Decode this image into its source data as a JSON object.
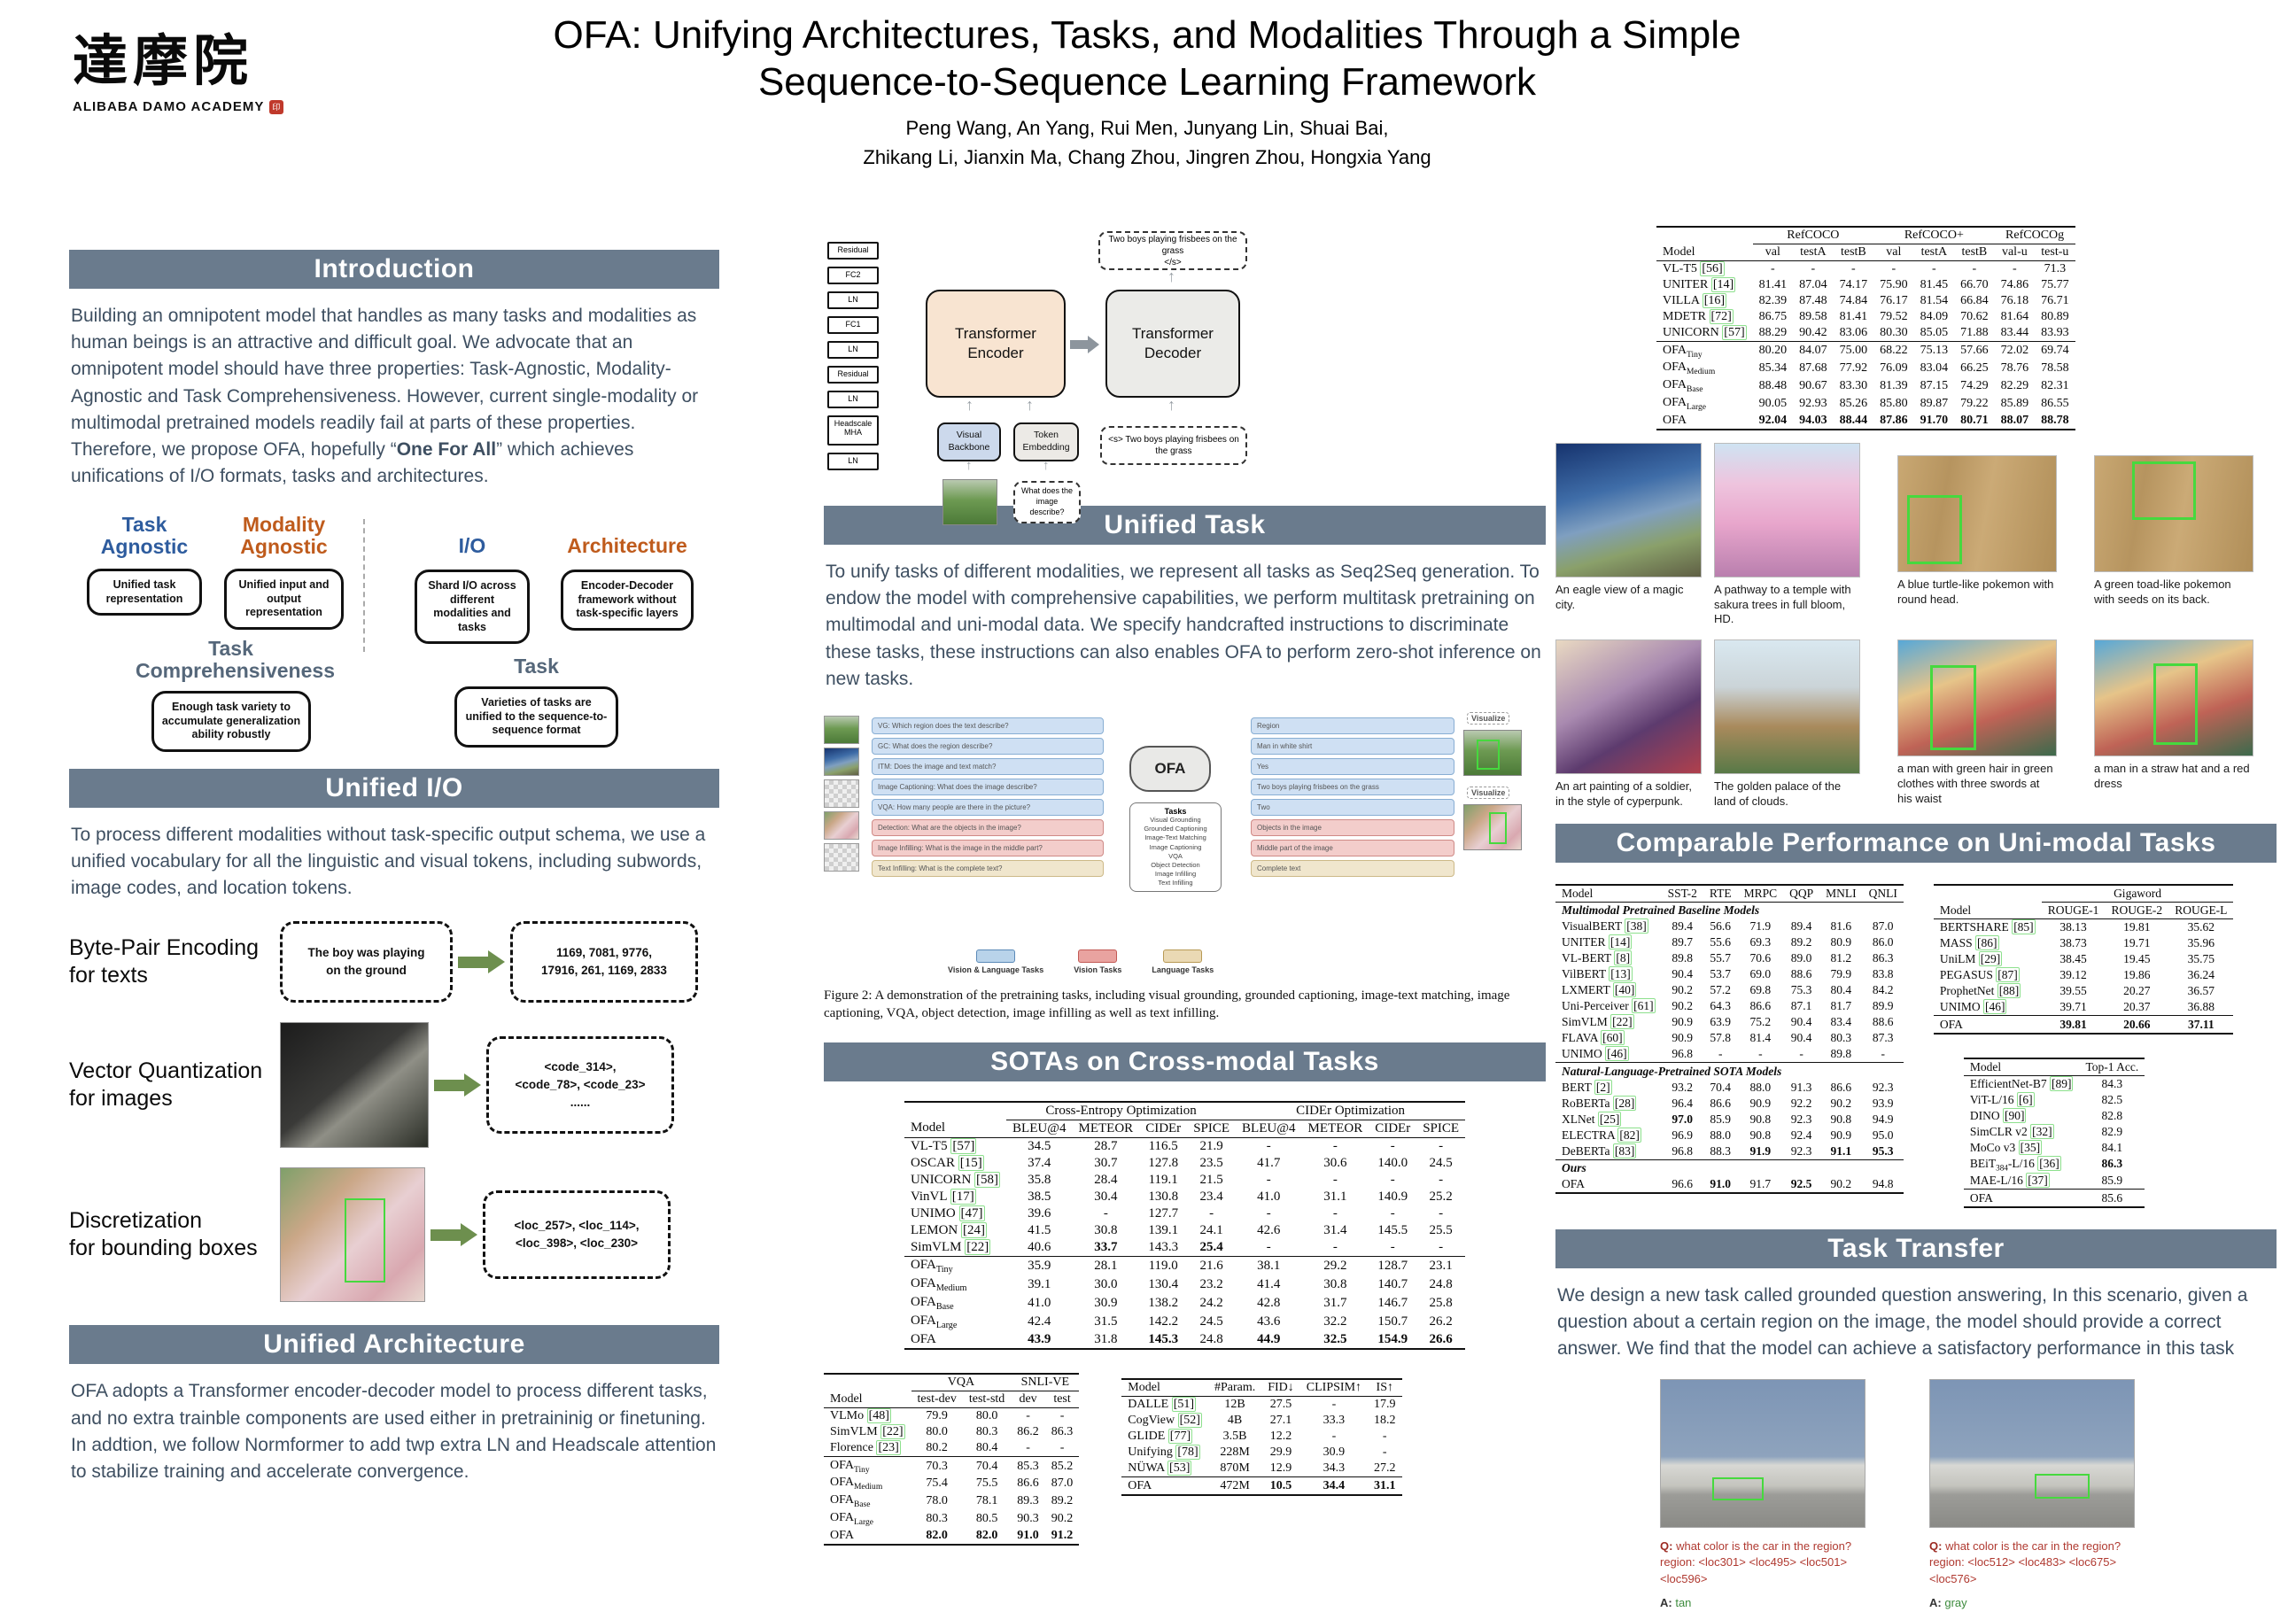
{
  "header": {
    "logo_cjk": "達摩院",
    "logo_sub": "ALIBABA DAMO ACADEMY",
    "title_line1": "OFA: Unifying Architectures, Tasks, and Modalities Through a Simple",
    "title_line2": "Sequence-to-Sequence Learning Framework",
    "authors_line1": "Peng Wang, An Yang, Rui Men, Junyang Lin, Shuai Bai,",
    "authors_line2": "Zhikang Li, Jianxin Ma, Chang Zhou, Jingren Zhou, Hongxia Yang"
  },
  "sections": {
    "intro": "Introduction",
    "unified_io": "Unified I/O",
    "unified_arch": "Unified Architecture",
    "unified_task": "Unified Task",
    "sotas": "SOTAs on Cross-modal Tasks",
    "unimodal": "Comparable Performance on Uni-modal Tasks",
    "task_transfer": "Task Transfer"
  },
  "intro": {
    "pre": "Building an omnipotent model that handles as many tasks and modalities as human beings is an attractive and difficult goal. We advocate that an omnipotent model should have three properties: Task-Agnostic, Modality-Agnostic and Task Comprehensiveness. However, current single-modality or multimodal pretrained models readily fail at parts of these properties. Therefore, we propose OFA, hopefully “",
    "bold": "One For All",
    "post": "” which achieves unifications of I/O formats, tasks and architectures."
  },
  "properties": {
    "p1": {
      "h": "Task Agnostic",
      "b": "Unified task representation"
    },
    "p2": {
      "h": "Modality Agnostic",
      "b": "Unified input and output representation"
    },
    "p3": {
      "h": "I/O",
      "b": "Shard I/O across different modalities and tasks"
    },
    "p4": {
      "h": "Architecture",
      "b": "Encoder-Decoder framework without task-specific layers"
    },
    "p5": {
      "h": "Task Comprehensiveness",
      "b": "Enough task variety to accumulate generalization ability robustly"
    },
    "p6": {
      "h": "Task",
      "b": "Varieties of tasks are unified to the sequence-to-sequence format"
    }
  },
  "unified_io_text": "To process different modalities without task-specific output schema, we use a unified vocabulary for all the linguistic and visual tokens, including subwords, image codes, and location tokens.",
  "io": {
    "r1_label": "Byte-Pair Encoding\nfor texts",
    "r1_in": "The boy was playing\non the ground",
    "r1_out": "1169, 7081, 9776,\n17916, 261, 1169, 2833",
    "r2_label": "Vector Quantization\nfor images",
    "r2_out": "<code_314>,\n<code_78>, <code_23>\n......",
    "r3_label": "Discretization\nfor bounding boxes",
    "r3_out": "<loc_257>, <loc_114>,\n<loc_398>, <loc_230>"
  },
  "unified_arch_text": "OFA adopts a Transformer encoder-decoder model to process different tasks, and no extra trainble components are used either in pretraininig or finetuning. In addtion, we follow Normformer to add twp extra LN and Headscale attention to stabilize training and accelerate convergence.",
  "diagram": {
    "stack": [
      "Residual",
      "FC2",
      "LN",
      "FC1",
      "LN",
      "Residual",
      "LN",
      "Headscale MHA",
      "LN"
    ],
    "encoder": "Transformer Encoder",
    "decoder": "Transformer Decoder",
    "output": "Two boys playing frisbees on the grass\n</s>",
    "dec_input": "<s> Two boys playing frisbees on the grass",
    "visual_backbone": "Visual Backbone",
    "token_embedding": "Token Embedding",
    "question": "What does the image describe?"
  },
  "unified_task_text": "To unify tasks of different modalities, we represent all tasks as Seq2Seq generation. To endow the model with comprehensive capabilities, we perform multitask pretraining on multimodal and uni-modal data. We specify handcrafted instructions to discriminate these tasks, these instructions can also enables OFA to perform zero-shot inference on new tasks.",
  "figure2": {
    "ofa": "OFA",
    "tasks_title": "Tasks",
    "tasks_list": "Visual Grounding\nGrounded Captioning\nImage-Text Matching\nImage Captioning\nVQA\nObject Detection\nImage Infilling\nText Infilling",
    "left_bars": [
      "VG: Which region does the text describe?",
      "GC: What does the region describe?",
      "ITM: Does the image and text match?",
      "Image Captioning: What does the image describe?",
      "VQA: How many people are there in the picture?",
      "Detection: What are the objects in the image?",
      "Image Infilling: What is the image in the middle part?",
      "Text Infilling: What is the complete text?"
    ],
    "right_bars": [
      "Region",
      "Man in white shirt",
      "Yes",
      "Two boys playing frisbees on the grass",
      "Two",
      "Objects in the image",
      "Middle part of the image",
      "Complete text"
    ],
    "visualize": "Visualize",
    "legend": [
      "Vision & Language Tasks",
      "Vision Tasks",
      "Language Tasks"
    ],
    "caption": "Figure 2:  A demonstration of the pretraining tasks, including visual grounding, grounded captioning, image-text matching, image captioning, VQA, object detection, image infilling as well as text infilling."
  },
  "tables": {
    "cross_modal": {
      "groups": [
        {
          "label": "",
          "span": 1
        },
        {
          "label": "Cross-Entropy Optimization",
          "span": 4
        },
        {
          "label": "CIDEr Optimization",
          "span": 4
        }
      ],
      "columns": [
        "Model",
        "BLEU@4",
        "METEOR",
        "CIDEr",
        "SPICE",
        "BLEU@4",
        "METEOR",
        "CIDEr",
        "SPICE"
      ],
      "rows": [
        [
          "VL-T5 [57]",
          "34.5",
          "28.7",
          "116.5",
          "21.9",
          "-",
          "-",
          "-",
          "-"
        ],
        [
          "OSCAR [15]",
          "37.4",
          "30.7",
          "127.8",
          "23.5",
          "41.7",
          "30.6",
          "140.0",
          "24.5"
        ],
        [
          "UNICORN [58]",
          "35.8",
          "28.4",
          "119.1",
          "21.5",
          "-",
          "-",
          "-",
          "-"
        ],
        [
          "VinVL [17]",
          "38.5",
          "30.4",
          "130.8",
          "23.4",
          "41.0",
          "31.1",
          "140.9",
          "25.2"
        ],
        [
          "UNIMO [47]",
          "39.6",
          "-",
          "127.7",
          "-",
          "-",
          "-",
          "-",
          "-"
        ],
        [
          "LEMON [24]",
          "41.5",
          "30.8",
          "139.1",
          "24.1",
          "42.6",
          "31.4",
          "145.5",
          "25.5"
        ],
        [
          "SimVLM [22]",
          "40.6",
          "*33.7*",
          "143.3",
          "*25.4*",
          "-",
          "-",
          "-",
          "-"
        ],
        "::rule::",
        [
          "OFA~Tiny~",
          "35.9",
          "28.1",
          "119.0",
          "21.6",
          "38.1",
          "29.2",
          "128.7",
          "23.1"
        ],
        [
          "OFA~Medium~",
          "39.1",
          "30.0",
          "130.4",
          "23.2",
          "41.4",
          "30.8",
          "140.7",
          "24.8"
        ],
        [
          "OFA~Base~",
          "41.0",
          "30.9",
          "138.2",
          "24.2",
          "42.8",
          "31.7",
          "146.7",
          "25.8"
        ],
        [
          "OFA~Large~",
          "42.4",
          "31.5",
          "142.2",
          "24.5",
          "43.6",
          "32.2",
          "150.7",
          "26.2"
        ],
        [
          "OFA",
          "*43.9*",
          "31.8",
          "*145.3*",
          "24.8",
          "*44.9*",
          "*32.5*",
          "*154.9*",
          "*26.6*"
        ]
      ]
    },
    "vqa_snli": {
      "groups": [
        {
          "label": "",
          "span": 1
        },
        {
          "label": "VQA",
          "span": 2
        },
        {
          "label": "SNLI-VE",
          "span": 2
        }
      ],
      "columns": [
        "Model",
        "test-dev",
        "test-std",
        "dev",
        "test"
      ],
      "rows": [
        [
          "VLMo [48]",
          "79.9",
          "80.0",
          "-",
          "-"
        ],
        [
          "SimVLM [22]",
          "80.0",
          "80.3",
          "86.2",
          "86.3"
        ],
        [
          "Florence [23]",
          "80.2",
          "80.4",
          "-",
          "-"
        ],
        "::rule::",
        [
          "OFA~Tiny~",
          "70.3",
          "70.4",
          "85.3",
          "85.2"
        ],
        [
          "OFA~Medium~",
          "75.4",
          "75.5",
          "86.6",
          "87.0"
        ],
        [
          "OFA~Base~",
          "78.0",
          "78.1",
          "89.3",
          "89.2"
        ],
        [
          "OFA~Large~",
          "80.3",
          "80.5",
          "90.3",
          "90.2"
        ],
        [
          "OFA",
          "*82.0*",
          "*82.0*",
          "*91.0*",
          "*91.2*"
        ]
      ]
    },
    "text2img": {
      "columns": [
        "Model",
        "#Param.",
        "FID↓",
        "CLIPSIM↑",
        "IS↑"
      ],
      "rows": [
        [
          "DALLE [51]",
          "12B",
          "27.5",
          "-",
          "17.9"
        ],
        [
          "CogView [52]",
          "4B",
          "27.1",
          "33.3",
          "18.2"
        ],
        [
          "GLIDE [77]",
          "3.5B",
          "12.2",
          "-",
          "-"
        ],
        [
          "Unifying [78]",
          "228M",
          "29.9",
          "30.9",
          "-"
        ],
        [
          "NÜWA [53]",
          "870M",
          "12.9",
          "34.3",
          "27.2"
        ],
        "::rule::",
        [
          "OFA",
          "472M",
          "*10.5*",
          "*34.4*",
          "*31.1*"
        ]
      ]
    },
    "refcoco": {
      "groups": [
        {
          "label": "",
          "span": 1
        },
        {
          "label": "RefCOCO",
          "span": 3
        },
        {
          "label": "RefCOCO+",
          "span": 3
        },
        {
          "label": "RefCOCOg",
          "span": 2
        }
      ],
      "columns": [
        "Model",
        "val",
        "testA",
        "testB",
        "val",
        "testA",
        "testB",
        "val-u",
        "test-u"
      ],
      "rows": [
        [
          "VL-T5 [56]",
          "-",
          "-",
          "-",
          "-",
          "-",
          "-",
          "-",
          "71.3"
        ],
        [
          "UNITER [14]",
          "81.41",
          "87.04",
          "74.17",
          "75.90",
          "81.45",
          "66.70",
          "74.86",
          "75.77"
        ],
        [
          "VILLA [16]",
          "82.39",
          "87.48",
          "74.84",
          "76.17",
          "81.54",
          "66.84",
          "76.18",
          "76.71"
        ],
        [
          "MDETR [72]",
          "86.75",
          "89.58",
          "81.41",
          "79.52",
          "84.09",
          "70.62",
          "81.64",
          "80.89"
        ],
        [
          "UNICORN [57]",
          "88.29",
          "90.42",
          "83.06",
          "80.30",
          "85.05",
          "71.88",
          "83.44",
          "83.93"
        ],
        "::rule::",
        [
          "OFA~Tiny~",
          "80.20",
          "84.07",
          "75.00",
          "68.22",
          "75.13",
          "57.66",
          "72.02",
          "69.74"
        ],
        [
          "OFA~Medium~",
          "85.34",
          "87.68",
          "77.92",
          "76.09",
          "83.04",
          "66.25",
          "78.76",
          "78.58"
        ],
        [
          "OFA~Base~",
          "88.48",
          "90.67",
          "83.30",
          "81.39",
          "87.15",
          "74.29",
          "82.29",
          "82.31"
        ],
        [
          "OFA~Large~",
          "90.05",
          "92.93",
          "85.26",
          "85.80",
          "89.87",
          "79.22",
          "85.89",
          "86.55"
        ],
        [
          "OFA",
          "*92.04*",
          "*94.03*",
          "*88.44*",
          "*87.86*",
          "*91.70*",
          "*80.71*",
          "*88.07*",
          "*88.78*"
        ]
      ]
    },
    "glue": {
      "columns": [
        "Model",
        "SST-2",
        "RTE",
        "MRPC",
        "QQP",
        "MNLI",
        "QNLI"
      ],
      "rows": [
        "Multimodal Pretrained Baseline Models",
        [
          "VisualBERT [38]",
          "89.4",
          "56.6",
          "71.9",
          "89.4",
          "81.6",
          "87.0"
        ],
        [
          "UNITER [14]",
          "89.7",
          "55.6",
          "69.3",
          "89.2",
          "80.9",
          "86.0"
        ],
        [
          "VL-BERT [8]",
          "89.8",
          "55.7",
          "70.6",
          "89.0",
          "81.2",
          "86.3"
        ],
        [
          "VilBERT [13]",
          "90.4",
          "53.7",
          "69.0",
          "88.6",
          "79.9",
          "83.8"
        ],
        [
          "LXMERT [40]",
          "90.2",
          "57.2",
          "69.8",
          "75.3",
          "80.4",
          "84.2"
        ],
        [
          "Uni-Perceiver [61]",
          "90.2",
          "64.3",
          "86.6",
          "87.1",
          "81.7",
          "89.9"
        ],
        [
          "SimVLM [22]",
          "90.9",
          "63.9",
          "75.2",
          "90.4",
          "83.4",
          "88.6"
        ],
        [
          "FLAVA [60]",
          "90.9",
          "57.8",
          "81.4",
          "90.4",
          "80.3",
          "87.3"
        ],
        [
          "UNIMO [46]",
          "96.8",
          "-",
          "-",
          "-",
          "89.8",
          "-"
        ],
        "::rule::",
        "Natural-Language-Pretrained SOTA Models",
        [
          "BERT [2]",
          "93.2",
          "70.4",
          "88.0",
          "91.3",
          "86.6",
          "92.3"
        ],
        [
          "RoBERTa [28]",
          "96.4",
          "86.6",
          "90.9",
          "92.2",
          "90.2",
          "93.9"
        ],
        [
          "XLNet [25]",
          "*97.0*",
          "85.9",
          "90.8",
          "92.3",
          "90.8",
          "94.9"
        ],
        [
          "ELECTRA [82]",
          "96.9",
          "88.0",
          "90.8",
          "92.4",
          "90.9",
          "95.0"
        ],
        [
          "DeBERTa [83]",
          "96.8",
          "88.3",
          "*91.9*",
          "92.3",
          "*91.1*",
          "*95.3*"
        ],
        "::rule::",
        "Ours",
        [
          "OFA",
          "96.6",
          "*91.0*",
          "91.7",
          "*92.5*",
          "90.2",
          "94.8"
        ]
      ]
    },
    "gigaword": {
      "groups": [
        {
          "label": "",
          "span": 1
        },
        {
          "label": "Gigaword",
          "span": 3
        }
      ],
      "columns": [
        "Model",
        "ROUGE-1",
        "ROUGE-2",
        "ROUGE-L"
      ],
      "rows": [
        [
          "BERTSHARE [85]",
          "38.13",
          "19.81",
          "35.62"
        ],
        [
          "MASS [86]",
          "38.73",
          "19.71",
          "35.96"
        ],
        [
          "UniLM [29]",
          "38.45",
          "19.45",
          "35.75"
        ],
        [
          "PEGASUS [87]",
          "39.12",
          "19.86",
          "36.24"
        ],
        [
          "ProphetNet [88]",
          "39.55",
          "20.27",
          "36.57"
        ],
        [
          "UNIMO [46]",
          "39.71",
          "20.37",
          "36.88"
        ],
        "::rule::",
        [
          "OFA",
          "*39.81*",
          "*20.66*",
          "*37.11*"
        ]
      ]
    },
    "imagenet": {
      "columns": [
        "Model",
        "Top-1 Acc."
      ],
      "rows": [
        [
          "EfficientNet-B7 [89]",
          "84.3"
        ],
        [
          "ViT-L/16 [6]",
          "82.5"
        ],
        [
          "DINO [90]",
          "82.8"
        ],
        [
          "SimCLR v2 [32]",
          "82.9"
        ],
        [
          "MoCo v3 [35]",
          "84.1"
        ],
        [
          "BEiT~384~-L/16 [36]",
          "*86.3*"
        ],
        [
          "MAE-L/16 [37]",
          "85.9"
        ],
        "::rule::",
        [
          "OFA",
          "85.6"
        ]
      ]
    }
  },
  "gallery": {
    "captions": [
      "An eagle view of a magic city.",
      "A pathway to a temple with sakura trees in full bloom, HD.",
      "A blue turtle-like pokemon with round head.",
      "A green toad-like pokemon with seeds on its back.",
      "An art painting of a soldier, in the style of cyperpunk.",
      "The golden palace of the land of clouds.",
      "a man with green hair in green clothes with three swords at his waist",
      "a man in a straw hat and a red dress"
    ]
  },
  "task_transfer_text": "We design a new task called grounded question answering, In this scenario, given a question about a certain region on the image, the model should provide a correct answer. We find that the model can achieve a satisfactory performance in this task",
  "gqa": {
    "q_label": "Q:",
    "a_label": "A:",
    "q1": "what color is the car in the region? region: <loc301> <loc495> <loc501> <loc596>",
    "a1": "tan",
    "q2": "what color is the car in the region? region: <loc512> <loc483> <loc675> <loc576>",
    "a2": "gray"
  }
}
